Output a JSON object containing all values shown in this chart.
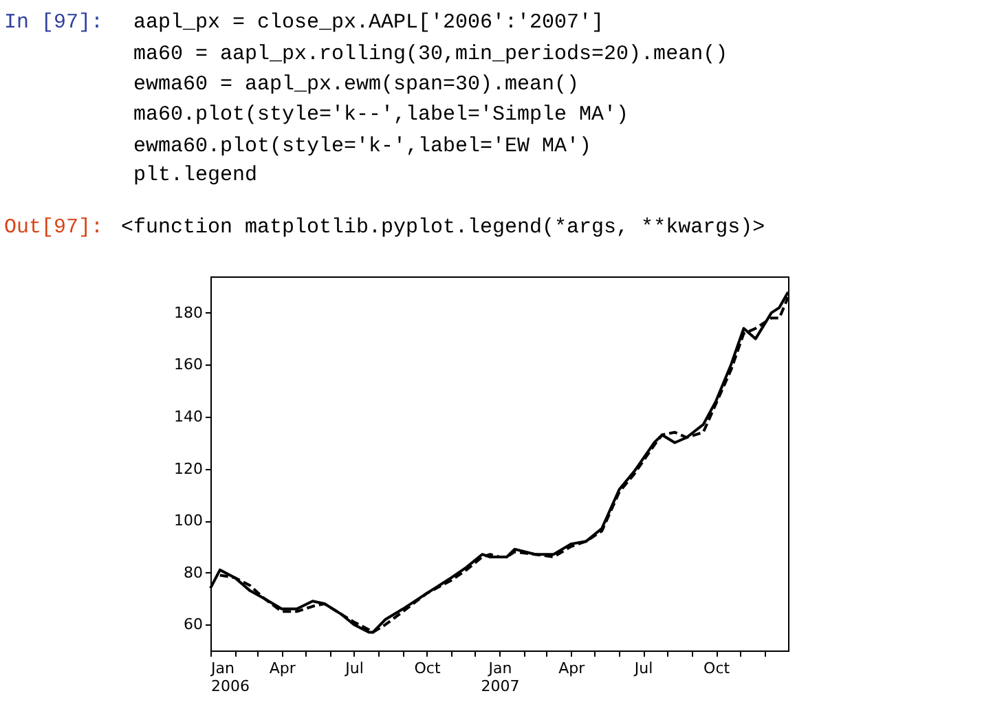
{
  "chart_data": {
    "type": "line",
    "annotations": [
      "In [97]:",
      "aapl_px = close_px.AAPL['2006':'2007']",
      "ma60 = aapl_px.rolling(30,min_periods=20).mean()",
      "ewma60 = aapl_px.ewm(span=30).mean()",
      "ma60.plot(style='k--',label='Simple MA')",
      "ewma60.plot(style='k-',label='EW MA')",
      "plt.legend",
      "Out[97]:",
      "<function matplotlib.pyplot.legend(*args, **kwargs)>"
    ],
    "x": [
      "2006-01-01",
      "2006-01-13",
      "2006-02-01",
      "2006-02-20",
      "2006-03-10",
      "2006-04-01",
      "2006-04-20",
      "2006-05-10",
      "2006-05-25",
      "2006-06-15",
      "2006-07-01",
      "2006-07-20",
      "2006-07-25",
      "2006-08-10",
      "2006-09-01",
      "2006-10-01",
      "2006-11-01",
      "2006-11-20",
      "2006-12-10",
      "2006-12-20",
      "2007-01-01",
      "2007-01-10",
      "2007-01-20",
      "2007-02-15",
      "2007-03-10",
      "2007-04-01",
      "2007-04-20",
      "2007-05-10",
      "2007-06-01",
      "2007-06-20",
      "2007-07-15",
      "2007-07-25",
      "2007-08-10",
      "2007-08-25",
      "2007-09-15",
      "2007-10-01",
      "2007-10-20",
      "2007-11-05",
      "2007-11-20",
      "2007-12-10",
      "2007-12-20",
      "2007-12-31"
    ],
    "series": [
      {
        "color": "#000000",
        "line_style": "dashed",
        "values": [
          null,
          79,
          78,
          75,
          70,
          65,
          65,
          67,
          68,
          64,
          61,
          58,
          57,
          60,
          65,
          72,
          77,
          81,
          86,
          87,
          86,
          86,
          88,
          87,
          86,
          90,
          92,
          96,
          111,
          118,
          129,
          133,
          134,
          132,
          134,
          145,
          158,
          172,
          174,
          178,
          178,
          186
        ]
      },
      {
        "color": "#000000",
        "line_style": "solid",
        "values": [
          74,
          81,
          78,
          73,
          70,
          66,
          66,
          69,
          68,
          64,
          60,
          57,
          57,
          62,
          66,
          72,
          78,
          82,
          87,
          86,
          86,
          86,
          89,
          87,
          87,
          91,
          92,
          97,
          112,
          119,
          130,
          133,
          130,
          132,
          137,
          146,
          160,
          174,
          170,
          180,
          182,
          188
        ]
      }
    ],
    "xlim": [
      "2006-01-01",
      "2007-12-31"
    ],
    "xticks": [
      {
        "value": "2006-01-01",
        "label": "Jan\n2006"
      },
      {
        "value": "2006-02-01",
        "label": null
      },
      {
        "value": "2006-03-01",
        "label": null
      },
      {
        "value": "2006-04-01",
        "label": "Apr"
      },
      {
        "value": "2006-05-01",
        "label": null
      },
      {
        "value": "2006-06-01",
        "label": null
      },
      {
        "value": "2006-07-01",
        "label": "Jul"
      },
      {
        "value": "2006-08-01",
        "label": null
      },
      {
        "value": "2006-09-01",
        "label": null
      },
      {
        "value": "2006-10-01",
        "label": "Oct"
      },
      {
        "value": "2006-11-01",
        "label": null
      },
      {
        "value": "2006-12-01",
        "label": null
      },
      {
        "value": "2007-01-01",
        "label": "Jan\n2007"
      },
      {
        "value": "2007-02-01",
        "label": null
      },
      {
        "value": "2007-03-01",
        "label": null
      },
      {
        "value": "2007-04-01",
        "label": "Apr"
      },
      {
        "value": "2007-05-01",
        "label": null
      },
      {
        "value": "2007-06-01",
        "label": null
      },
      {
        "value": "2007-07-01",
        "label": "Jul"
      },
      {
        "value": "2007-08-01",
        "label": null
      },
      {
        "value": "2007-09-01",
        "label": null
      },
      {
        "value": "2007-10-01",
        "label": "Oct"
      },
      {
        "value": "2007-11-01",
        "label": null
      },
      {
        "value": "2007-12-01",
        "label": null
      }
    ],
    "ylim": [
      50,
      194
    ],
    "yticks": [
      60,
      80,
      100,
      120,
      140,
      160,
      180
    ],
    "grid": false,
    "legend": false,
    "marker": "none"
  }
}
